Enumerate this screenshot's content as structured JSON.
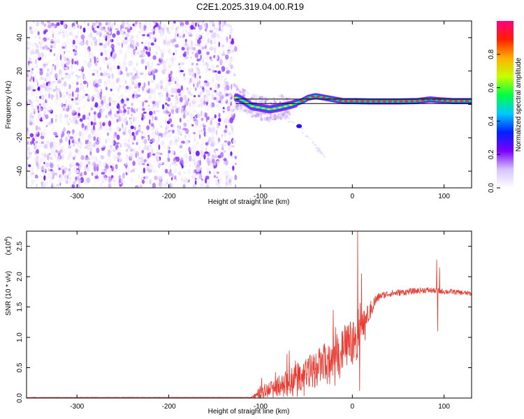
{
  "title": "C2E1.2025.319.04.00.R19",
  "colors": {
    "snr_line": "#e8392f",
    "axis": "#000000",
    "background": "#ffffff"
  },
  "chart_data": [
    {
      "type": "heatmap",
      "name": "spectrogram",
      "xlabel": "Height of straight line (km)",
      "ylabel": "Frequency (Hz)",
      "xlim": [
        -355,
        130
      ],
      "ylim": [
        -50,
        50
      ],
      "xticks": [
        -300,
        -200,
        -100,
        0,
        100
      ],
      "yticks": [
        -40,
        -20,
        0,
        20,
        40
      ],
      "xtick_labels": [
        "-300",
        "-200",
        "-100",
        "0",
        "100"
      ],
      "ytick_labels": [
        "-40",
        "-20",
        "0",
        "20",
        "40"
      ],
      "colorbar": {
        "label": "Normalized spectral amplitude",
        "range": [
          0,
          1
        ],
        "ticks": [
          0.0,
          0.2,
          0.4,
          0.6,
          0.8
        ],
        "tick_labels": [
          "0.0",
          "0.2",
          "0.4",
          "0.6",
          "0.8"
        ],
        "colormap": [
          "#ffffff",
          "#d6c3ff",
          "#7a00ff",
          "#0020ff",
          "#00c8ff",
          "#00ff40",
          "#c8ff00",
          "#ffb000",
          "#ff2000",
          "#ff0080"
        ]
      },
      "noise_region_x": [
        -355,
        -127
      ],
      "signal_track": [
        {
          "x": -125,
          "f": 4
        },
        {
          "x": -118,
          "f": 2
        },
        {
          "x": -110,
          "f": -1
        },
        {
          "x": -100,
          "f": -2
        },
        {
          "x": -90,
          "f": -3
        },
        {
          "x": -80,
          "f": -2
        },
        {
          "x": -72,
          "f": -1
        },
        {
          "x": -65,
          "f": 0
        },
        {
          "x": -55,
          "f": 2
        },
        {
          "x": -48,
          "f": 4
        },
        {
          "x": -40,
          "f": 5
        },
        {
          "x": -30,
          "f": 4
        },
        {
          "x": -20,
          "f": 3
        },
        {
          "x": -10,
          "f": 2
        },
        {
          "x": 0,
          "f": 2
        },
        {
          "x": 20,
          "f": 1.8
        },
        {
          "x": 50,
          "f": 1.8
        },
        {
          "x": 70,
          "f": 2
        },
        {
          "x": 85,
          "f": 3
        },
        {
          "x": 95,
          "f": 2.5
        },
        {
          "x": 110,
          "f": 2
        },
        {
          "x": 130,
          "f": 2
        }
      ],
      "band_edges_f": [
        3.2,
        0.5
      ],
      "band_x": [
        -127,
        130
      ],
      "secondary_spot": {
        "x": -58,
        "f": -13
      },
      "faint_trail": [
        {
          "x": -80,
          "f": -5
        },
        {
          "x": -55,
          "f": -15
        },
        {
          "x": -30,
          "f": -32
        }
      ]
    },
    {
      "type": "line",
      "name": "snr",
      "xlabel": "Height of straight line (km)",
      "ylabel": "SNR (10 * v/v)",
      "exponent_label": "(x10",
      "exponent_power": "4",
      "exponent_close": ")",
      "xlim": [
        -355,
        130
      ],
      "ylim": [
        0,
        2.75
      ],
      "xticks": [
        -300,
        -200,
        -100,
        0,
        100
      ],
      "yticks": [
        0.0,
        0.5,
        1.0,
        1.5,
        2.0,
        2.5
      ],
      "xtick_labels": [
        "-300",
        "-200",
        "-100",
        "0",
        "100"
      ],
      "ytick_labels": [
        "0.0",
        "0.5",
        "1.0",
        "1.5",
        "2.0",
        "2.5"
      ],
      "trend": [
        {
          "x": -355,
          "y": 0.01
        },
        {
          "x": -110,
          "y": 0.01
        },
        {
          "x": -100,
          "y": 0.08
        },
        {
          "x": -80,
          "y": 0.2
        },
        {
          "x": -60,
          "y": 0.33
        },
        {
          "x": -40,
          "y": 0.48
        },
        {
          "x": -20,
          "y": 0.7
        },
        {
          "x": 0,
          "y": 0.95
        },
        {
          "x": 5,
          "y": 1.0
        },
        {
          "x": 15,
          "y": 1.3
        },
        {
          "x": 25,
          "y": 1.6
        },
        {
          "x": 30,
          "y": 1.68
        },
        {
          "x": 40,
          "y": 1.72
        },
        {
          "x": 60,
          "y": 1.75
        },
        {
          "x": 80,
          "y": 1.78
        },
        {
          "x": 95,
          "y": 1.76
        },
        {
          "x": 110,
          "y": 1.75
        },
        {
          "x": 130,
          "y": 1.72
        }
      ],
      "noise_amplitude": [
        {
          "x": -355,
          "a": 0.004
        },
        {
          "x": -110,
          "a": 0.004
        },
        {
          "x": -100,
          "a": 0.12
        },
        {
          "x": -40,
          "a": 0.3
        },
        {
          "x": 0,
          "a": 0.35
        },
        {
          "x": 15,
          "a": 0.2
        },
        {
          "x": 30,
          "a": 0.06
        },
        {
          "x": 130,
          "a": 0.04
        }
      ],
      "spikes": [
        {
          "x": 6,
          "y": 2.75
        },
        {
          "x": 8,
          "y": 0.12
        },
        {
          "x": 10,
          "y": 2.05
        },
        {
          "x": 92,
          "y": 2.28
        },
        {
          "x": 93,
          "y": 1.1
        },
        {
          "x": 95,
          "y": 2.15
        }
      ]
    }
  ]
}
